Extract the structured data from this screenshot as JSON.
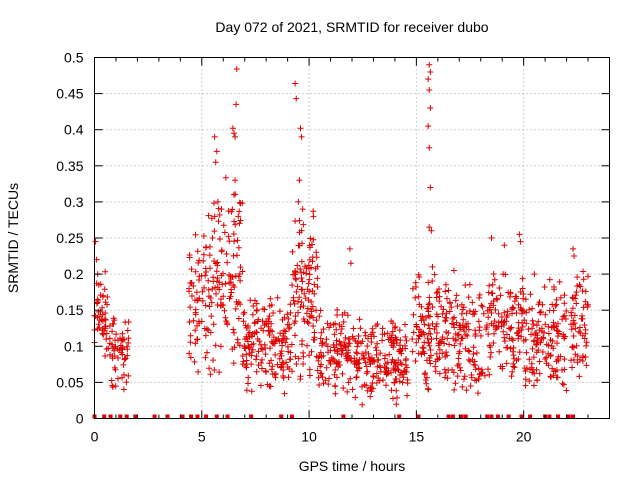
{
  "chart_data": {
    "type": "scatter",
    "title": "Day 072 of 2021, SRMTID for receiver dubo",
    "xlabel": "GPS time / hours",
    "ylabel": "SRMTID / TECUs",
    "xlim": [
      0,
      24
    ],
    "ylim": [
      0,
      0.5
    ],
    "xticks": [
      0,
      5,
      10,
      15,
      20
    ],
    "xtick_labels": [
      "0",
      "5",
      "10",
      "15",
      "20"
    ],
    "yticks": [
      0,
      0.05,
      0.1,
      0.15,
      0.2,
      0.25,
      0.3,
      0.35,
      0.4,
      0.45,
      0.5
    ],
    "ytick_labels": [
      "0",
      "0.05",
      "0.1",
      "0.15",
      "0.2",
      "0.25",
      "0.3",
      "0.35",
      "0.4",
      "0.45",
      "0.5"
    ],
    "grid": true,
    "marker": "+",
    "color": "#e00000",
    "clusters": [
      {
        "x0": 0.0,
        "x1": 0.6,
        "ymin": 0.06,
        "ymax": 0.22,
        "n": 45
      },
      {
        "x0": 0.6,
        "x1": 1.6,
        "ymin": 0.03,
        "ymax": 0.16,
        "n": 60
      },
      {
        "x0": 4.4,
        "x1": 5.4,
        "ymin": 0.05,
        "ymax": 0.29,
        "n": 70
      },
      {
        "x0": 5.4,
        "x1": 6.9,
        "ymin": 0.05,
        "ymax": 0.34,
        "n": 110
      },
      {
        "x0": 6.9,
        "x1": 9.2,
        "ymin": 0.03,
        "ymax": 0.18,
        "n": 170
      },
      {
        "x0": 9.2,
        "x1": 10.4,
        "ymin": 0.04,
        "ymax": 0.3,
        "n": 110
      },
      {
        "x0": 10.4,
        "x1": 12.0,
        "ymin": 0.03,
        "ymax": 0.16,
        "n": 110
      },
      {
        "x0": 12.0,
        "x1": 14.6,
        "ymin": 0.015,
        "ymax": 0.14,
        "n": 190
      },
      {
        "x0": 14.8,
        "x1": 16.0,
        "ymin": 0.03,
        "ymax": 0.21,
        "n": 90
      },
      {
        "x0": 16.0,
        "x1": 18.2,
        "ymin": 0.02,
        "ymax": 0.2,
        "n": 150
      },
      {
        "x0": 18.2,
        "x1": 20.0,
        "ymin": 0.05,
        "ymax": 0.21,
        "n": 120
      },
      {
        "x0": 20.0,
        "x1": 22.0,
        "ymin": 0.03,
        "ymax": 0.2,
        "n": 140
      },
      {
        "x0": 22.2,
        "x1": 23.0,
        "ymin": 0.04,
        "ymax": 0.22,
        "n": 60
      }
    ],
    "peaks": [
      [
        0.05,
        0.245
      ],
      [
        0.1,
        0.22
      ],
      [
        0.15,
        0.2
      ],
      [
        0.2,
        0.185
      ],
      [
        0.4,
        0.17
      ],
      [
        5.6,
        0.39
      ],
      [
        5.7,
        0.37
      ],
      [
        5.65,
        0.355
      ],
      [
        5.75,
        0.3
      ],
      [
        5.5,
        0.25
      ],
      [
        6.45,
        0.402
      ],
      [
        6.5,
        0.395
      ],
      [
        6.55,
        0.39
      ],
      [
        6.6,
        0.435
      ],
      [
        6.63,
        0.484
      ],
      [
        6.55,
        0.33
      ],
      [
        6.5,
        0.31
      ],
      [
        6.7,
        0.28
      ],
      [
        9.35,
        0.464
      ],
      [
        9.4,
        0.443
      ],
      [
        9.6,
        0.402
      ],
      [
        9.65,
        0.39
      ],
      [
        9.55,
        0.33
      ],
      [
        9.5,
        0.3
      ],
      [
        9.7,
        0.29
      ],
      [
        10.2,
        0.28
      ],
      [
        11.9,
        0.235
      ],
      [
        11.95,
        0.215
      ],
      [
        15.6,
        0.49
      ],
      [
        15.65,
        0.48
      ],
      [
        15.55,
        0.47
      ],
      [
        15.6,
        0.455
      ],
      [
        15.65,
        0.43
      ],
      [
        15.55,
        0.405
      ],
      [
        15.6,
        0.375
      ],
      [
        15.65,
        0.32
      ],
      [
        15.6,
        0.265
      ],
      [
        15.7,
        0.26
      ],
      [
        15.75,
        0.21
      ],
      [
        16.75,
        0.205
      ],
      [
        18.5,
        0.25
      ],
      [
        19.1,
        0.24
      ],
      [
        19.8,
        0.255
      ],
      [
        19.85,
        0.245
      ],
      [
        20.5,
        0.2
      ],
      [
        22.3,
        0.235
      ],
      [
        22.35,
        0.225
      ],
      [
        22.6,
        0.185
      ]
    ],
    "zeros": [
      0.0,
      0.45,
      0.75,
      1.2,
      1.5,
      1.9,
      2.8,
      3.4,
      4.1,
      4.5,
      4.8,
      5.2,
      5.7,
      6.2,
      7.3,
      8.7,
      9.2,
      11.6,
      14.2,
      15.1,
      16.5,
      16.7,
      17.1,
      17.3,
      18.3,
      18.5,
      18.8,
      19.3,
      19.9,
      20.3,
      21.0,
      21.2,
      21.6,
      22.1,
      22.3
    ]
  }
}
